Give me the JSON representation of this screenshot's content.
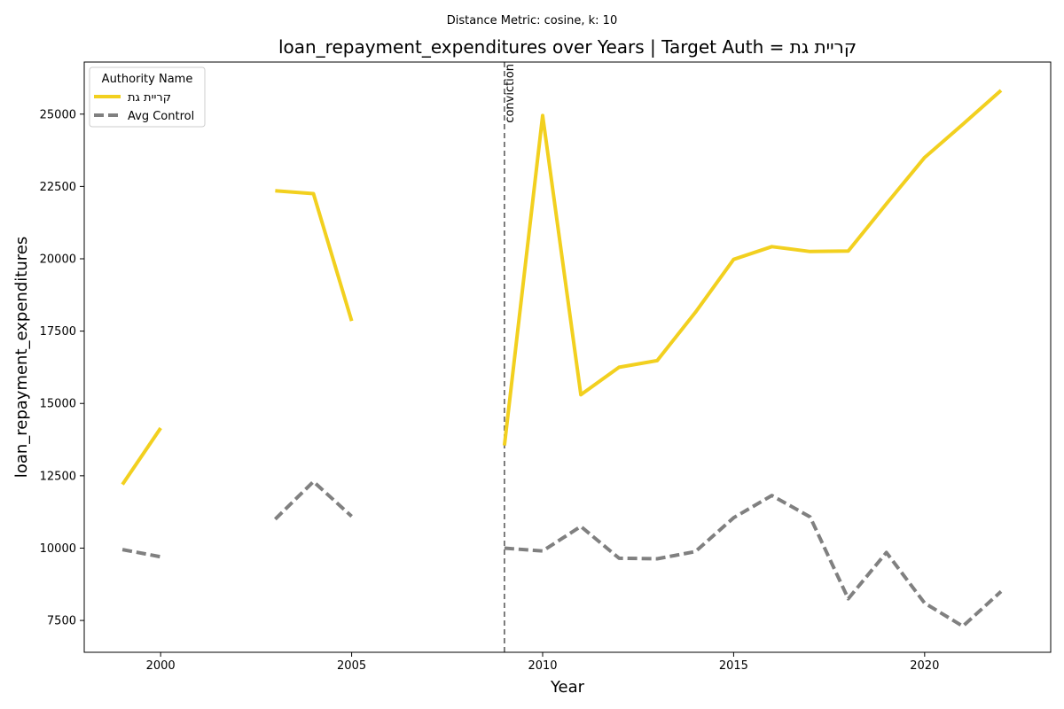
{
  "chart_data": {
    "type": "line",
    "suptitle": "Distance Metric: cosine, k: 10",
    "title": "loan_repayment_expenditures over Years | Target Auth = קריית גת",
    "xlabel": "Year",
    "ylabel": "loan_repayment_expenditures",
    "xlim": [
      1998,
      2023.3
    ],
    "ylim": [
      6400,
      26800
    ],
    "x_ticks": [
      2000,
      2005,
      2010,
      2015,
      2020
    ],
    "y_ticks": [
      7500,
      10000,
      12500,
      15000,
      17500,
      20000,
      22500,
      25000
    ],
    "grid": false,
    "legend": {
      "title": "Authority Name",
      "placement": "top-left"
    },
    "series": [
      {
        "name": "קריית גת",
        "color": "#f2d01f",
        "style": "solid",
        "points": [
          [
            1999,
            12200
          ],
          [
            2000,
            14150
          ],
          [
            2001,
            null
          ],
          [
            2002,
            null
          ],
          [
            2003,
            22350
          ],
          [
            2004,
            22250
          ],
          [
            2005,
            17850
          ],
          [
            2006,
            null
          ],
          [
            2007,
            null
          ],
          [
            2008,
            null
          ],
          [
            2009,
            13550
          ],
          [
            2010,
            24950
          ],
          [
            2011,
            15300
          ],
          [
            2012,
            16250
          ],
          [
            2013,
            16480
          ],
          [
            2014,
            18150
          ],
          [
            2015,
            19980
          ],
          [
            2016,
            20420
          ],
          [
            2017,
            20250
          ],
          [
            2018,
            20270
          ],
          [
            2019,
            21900
          ],
          [
            2020,
            23500
          ],
          [
            2021,
            24650
          ],
          [
            2022,
            25820
          ]
        ]
      },
      {
        "name": "Avg Control",
        "color": "#808080",
        "style": "dashed",
        "points": [
          [
            1999,
            9950
          ],
          [
            2000,
            9700
          ],
          [
            2001,
            null
          ],
          [
            2002,
            null
          ],
          [
            2003,
            11000
          ],
          [
            2004,
            12300
          ],
          [
            2005,
            11100
          ],
          [
            2006,
            null
          ],
          [
            2007,
            null
          ],
          [
            2008,
            null
          ],
          [
            2009,
            10000
          ],
          [
            2010,
            9900
          ],
          [
            2011,
            10750
          ],
          [
            2012,
            9650
          ],
          [
            2013,
            9630
          ],
          [
            2014,
            9880
          ],
          [
            2015,
            11050
          ],
          [
            2016,
            11820
          ],
          [
            2017,
            11080
          ],
          [
            2018,
            8250
          ],
          [
            2019,
            9850
          ],
          [
            2020,
            8100
          ],
          [
            2021,
            7300
          ],
          [
            2022,
            8500
          ]
        ]
      }
    ],
    "annotations": [
      {
        "type": "vline",
        "x": 2009,
        "label": "conviction",
        "color": "#707070"
      }
    ]
  }
}
